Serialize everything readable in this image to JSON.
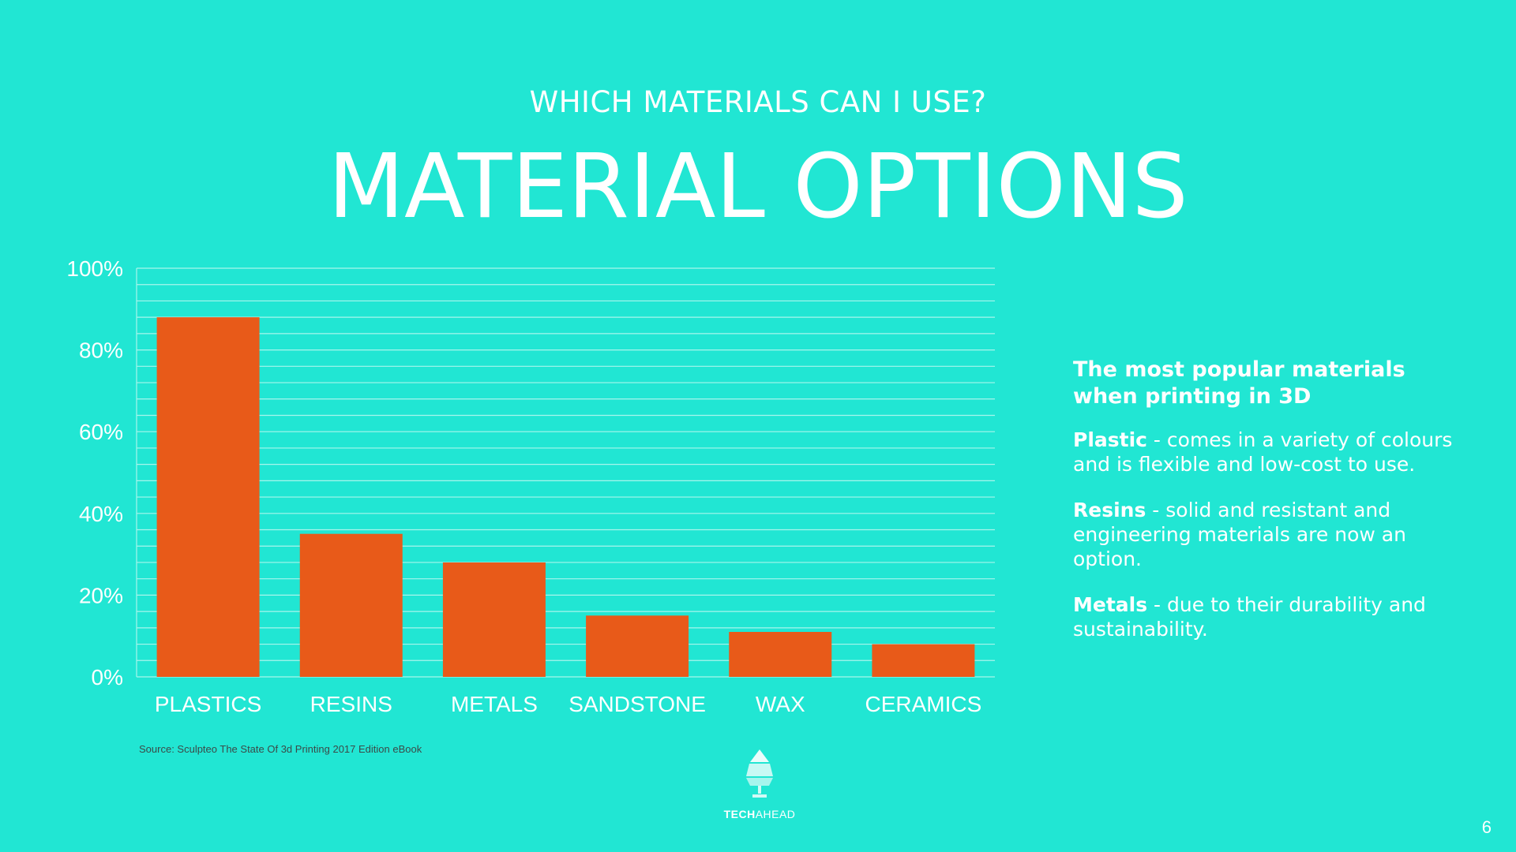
{
  "slide": {
    "subtitle": "WHICH MATERIALS CAN I USE?",
    "title": "MATERIAL OPTIONS",
    "source": "Source: Sculpteo The State Of 3d Printing 2017 Edition eBook",
    "page_number": "6"
  },
  "side_panel": {
    "heading": "The most popular materials when printing in 3D",
    "items": [
      {
        "term": "Plastic",
        "text": " - comes in a variety of colours and is flexible and low-cost to use."
      },
      {
        "term": "Resins",
        "text": " - solid and resistant and engineering materials are now an option."
      },
      {
        "term": "Metals",
        "text": " - due to their durability and sustainability."
      }
    ]
  },
  "logo": {
    "name_part1": "TECH",
    "name_part2": "AHEAD",
    "icon": "lamp-icon"
  },
  "colors": {
    "background": "#21E6D3",
    "bar": "#E85A19",
    "text": "#FFFFFF",
    "gridline": "#A8F5EC"
  },
  "chart_data": {
    "type": "bar",
    "categories": [
      "PLASTICS",
      "RESINS",
      "METALS",
      "SANDSTONE",
      "WAX",
      "CERAMICS"
    ],
    "values": [
      88,
      35,
      28,
      15,
      11,
      8
    ],
    "ylim": [
      0,
      100
    ],
    "yticks": [
      "0%",
      "20%",
      "40%",
      "60%",
      "80%",
      "100%"
    ],
    "title": "",
    "xlabel": "",
    "ylabel": "",
    "grid": true,
    "legend": "none"
  }
}
